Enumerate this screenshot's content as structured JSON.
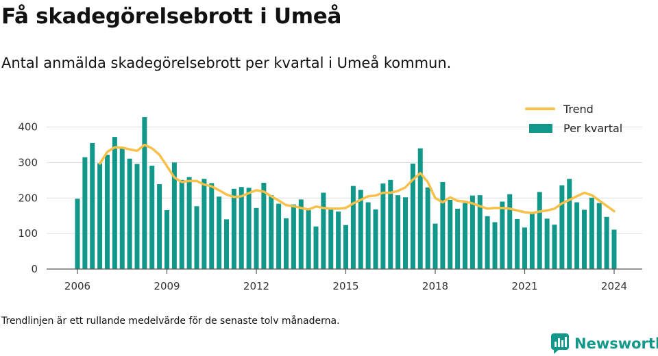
{
  "header": {
    "title": "Få skadegörelsebrott i Umeå",
    "subtitle": "Antal anmälda skadegörelsebrott per kvartal i Umeå kommun."
  },
  "footer": {
    "note": "Trendlinjen är ett rullande medelvärde för de senaste tolv månaderna.",
    "brand": "Newsworthy"
  },
  "colors": {
    "bar": "#11988a",
    "trend": "#f7c04a",
    "grid": "#dddddd",
    "axis": "#555555",
    "brand": "#11988a"
  },
  "chart_data": {
    "type": "bar",
    "title": "",
    "xlabel": "",
    "ylabel": "",
    "ylim": [
      0,
      430
    ],
    "yticks": [
      0,
      100,
      200,
      300,
      400
    ],
    "xticks": [
      "2006",
      "2009",
      "2012",
      "2015",
      "2018",
      "2021",
      "2024"
    ],
    "grid": true,
    "legend_position": "top-right",
    "categories": [
      "2006 Q1",
      "2006 Q2",
      "2006 Q3",
      "2006 Q4",
      "2007 Q1",
      "2007 Q2",
      "2007 Q3",
      "2007 Q4",
      "2008 Q1",
      "2008 Q2",
      "2008 Q3",
      "2008 Q4",
      "2009 Q1",
      "2009 Q2",
      "2009 Q3",
      "2009 Q4",
      "2010 Q1",
      "2010 Q2",
      "2010 Q3",
      "2010 Q4",
      "2011 Q1",
      "2011 Q2",
      "2011 Q3",
      "2011 Q4",
      "2012 Q1",
      "2012 Q2",
      "2012 Q3",
      "2012 Q4",
      "2013 Q1",
      "2013 Q2",
      "2013 Q3",
      "2013 Q4",
      "2014 Q1",
      "2014 Q2",
      "2014 Q3",
      "2014 Q4",
      "2015 Q1",
      "2015 Q2",
      "2015 Q3",
      "2015 Q4",
      "2016 Q1",
      "2016 Q2",
      "2016 Q3",
      "2016 Q4",
      "2017 Q1",
      "2017 Q2",
      "2017 Q3",
      "2017 Q4",
      "2018 Q1",
      "2018 Q2",
      "2018 Q3",
      "2018 Q4",
      "2019 Q1",
      "2019 Q2",
      "2019 Q3",
      "2019 Q4",
      "2020 Q1",
      "2020 Q2",
      "2020 Q3",
      "2020 Q4",
      "2021 Q1",
      "2021 Q2",
      "2021 Q3",
      "2021 Q4",
      "2022 Q1",
      "2022 Q2",
      "2022 Q3",
      "2022 Q4",
      "2023 Q1",
      "2023 Q2",
      "2023 Q3",
      "2023 Q4",
      "2024 Q1"
    ],
    "series": [
      {
        "name": "Per kvartal",
        "type": "bar",
        "values": [
          198,
          315,
          355,
          298,
          322,
          372,
          340,
          311,
          296,
          428,
          291,
          239,
          166,
          300,
          251,
          259,
          177,
          254,
          242,
          204,
          140,
          226,
          231,
          229,
          172,
          243,
          208,
          184,
          143,
          182,
          196,
          166,
          120,
          215,
          172,
          162,
          124,
          234,
          223,
          188,
          168,
          241,
          251,
          208,
          202,
          297,
          340,
          230,
          128,
          245,
          195,
          170,
          186,
          207,
          208,
          149,
          132,
          190,
          211,
          141,
          117,
          161,
          217,
          142,
          125,
          236,
          254,
          188,
          167,
          201,
          186,
          147,
          111
        ]
      },
      {
        "name": "Trend",
        "type": "line",
        "values": [
          null,
          null,
          null,
          297,
          330,
          343,
          342,
          337,
          333,
          350,
          340,
          322,
          290,
          258,
          245,
          248,
          248,
          238,
          233,
          222,
          210,
          203,
          205,
          214,
          222,
          218,
          205,
          193,
          180,
          177,
          172,
          168,
          176,
          172,
          170,
          170,
          172,
          185,
          195,
          205,
          207,
          215,
          215,
          220,
          230,
          252,
          270,
          245,
          200,
          188,
          202,
          192,
          190,
          185,
          177,
          170,
          172,
          172,
          170,
          165,
          160,
          158,
          162,
          165,
          170,
          185,
          195,
          205,
          215,
          208,
          193,
          178,
          163
        ]
      }
    ]
  }
}
